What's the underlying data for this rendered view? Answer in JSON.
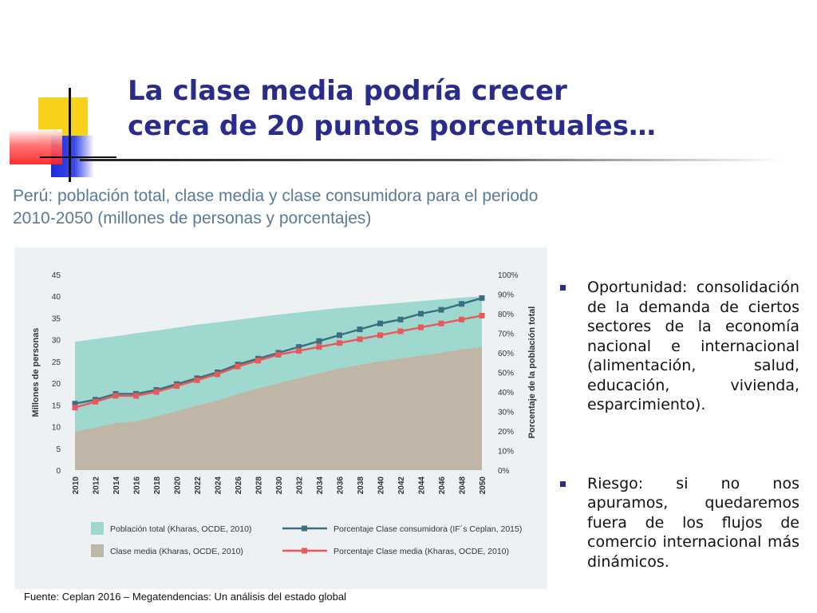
{
  "slide": {
    "title_line1": "La clase media podría crecer",
    "title_line2": "cerca de 20 puntos porcentuales…",
    "chart_heading_line1": "Perú: población total, clase media y clase consumidora para el periodo",
    "chart_heading_line2": "2010-2050 (millones de personas y porcentajes)",
    "bullets": [
      "Oportunidad: consolidación de la demanda de ciertos sectores de la economía nacional e internacional (alimentación, salud, educación, vivienda, esparcimiento).",
      "Riesgo: si no nos apuramos, quedaremos fuera de los flujos de comercio internacional más dinámicos."
    ],
    "footnote": "Fuente: Ceplan 2016 – Megatendencias: Un análisis del estado global",
    "colors": {
      "title": "#2a2c8c",
      "heading": "#5a7a96",
      "bullet_marker": "#2a2c8c"
    }
  },
  "chart_data": {
    "type": "area",
    "ylabel": "Millones de personas",
    "y2label": "Porcentaje de la población total",
    "ylim": [
      0,
      45
    ],
    "y2lim": [
      0,
      100
    ],
    "y_ticks": [
      "0",
      "5",
      "10",
      "15",
      "20",
      "25",
      "30",
      "35",
      "40",
      "45"
    ],
    "y2_ticks": [
      "0%",
      "10%",
      "20%",
      "30%",
      "40%",
      "50%",
      "60%",
      "70%",
      "80%",
      "90%",
      "100%"
    ],
    "x": [
      "2010",
      "2012",
      "2014",
      "2016",
      "2018",
      "2020",
      "2022",
      "2024",
      "2026",
      "2028",
      "2030",
      "2032",
      "2034",
      "2036",
      "2038",
      "2040",
      "2042",
      "2044",
      "2046",
      "2048",
      "2050"
    ],
    "grid": false,
    "legend_position": "bottom",
    "series": [
      {
        "name": "Población total (Kharas, OCDE, 2010)",
        "kind": "area",
        "axis": "left",
        "color": "#9fd8cf",
        "values": [
          29.5,
          30.2,
          30.8,
          31.5,
          32.1,
          32.8,
          33.5,
          34.0,
          34.6,
          35.2,
          35.8,
          36.3,
          36.8,
          37.3,
          37.7,
          38.1,
          38.5,
          38.9,
          39.3,
          39.7,
          40.0
        ]
      },
      {
        "name": "Clase media (Kharas, OCDE, 2010)",
        "kind": "area",
        "axis": "left",
        "color": "#c0b6a8",
        "values": [
          8.8,
          9.8,
          10.8,
          11.2,
          12.3,
          13.6,
          14.8,
          16.0,
          17.5,
          18.8,
          20.0,
          21.2,
          22.3,
          23.4,
          24.2,
          25.0,
          25.7,
          26.3,
          27.0,
          27.8,
          28.3
        ]
      },
      {
        "name": "Porcentaje Clase consumidora (IF´s Ceplan, 2015)",
        "kind": "line",
        "axis": "right",
        "color": "#3b6e80",
        "values": [
          34,
          36,
          39,
          39,
          41,
          44,
          47,
          50,
          54,
          57,
          60,
          63,
          66,
          69,
          72,
          75,
          77,
          80,
          82,
          85,
          88
        ]
      },
      {
        "name": "Porcentaje Clase media (Kharas, OCDE, 2010)",
        "kind": "line",
        "axis": "right",
        "color": "#e8595a",
        "values": [
          32,
          35,
          38,
          38,
          40,
          43,
          46,
          49,
          53,
          56,
          59,
          61,
          63,
          65,
          67,
          69,
          71,
          73,
          75,
          77,
          79
        ]
      }
    ]
  }
}
